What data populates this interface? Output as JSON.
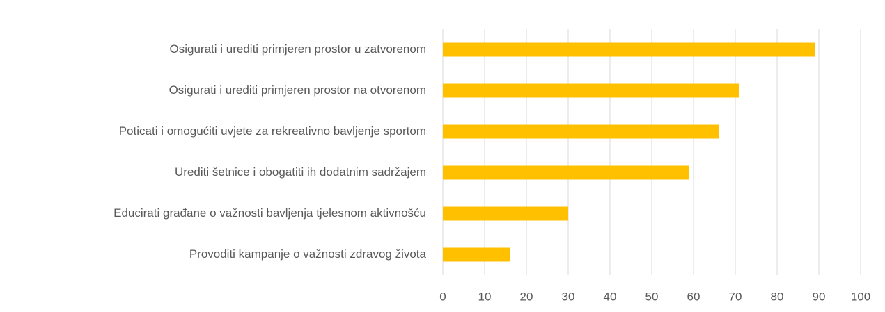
{
  "chart_data": {
    "type": "barh",
    "categories": [
      "Osigurati i urediti primjeren prostor u zatvorenom",
      "Osigurati i urediti primjeren prostor na otvorenom",
      "Poticati i omogućiti uvjete za rekreativno bavljenje sportom",
      "Urediti šetnice i obogatiti ih dodatnim sadržajem",
      "Educirati građane o važnosti bavljenja tjelesnom aktivnošću",
      "Provoditi kampanje o važnosti zdravog života"
    ],
    "values": [
      89,
      71,
      66,
      59,
      30,
      16
    ],
    "color": "#ffc000",
    "xlim": [
      0,
      100
    ],
    "xticks": [
      0,
      10,
      20,
      30,
      40,
      50,
      60,
      70,
      80,
      90,
      100
    ],
    "grid": true
  }
}
